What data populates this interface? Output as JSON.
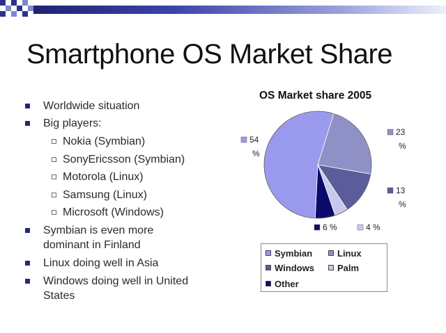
{
  "slide": {
    "title": "Smartphone OS Market Share",
    "bullets": [
      {
        "text": "Worldwide situation"
      },
      {
        "text": "Big players:"
      },
      {
        "text": "Nokia (Symbian)"
      },
      {
        "text": "SonyEricsson (Symbian)"
      },
      {
        "text": "Motorola (Linux)"
      },
      {
        "text": "Samsung (Linux)"
      },
      {
        "text": "Microsoft (Windows)"
      },
      {
        "text": "Symbian is even more"
      },
      {
        "text": "dominant in Finland"
      },
      {
        "text": "Linux doing well in Asia"
      },
      {
        "text": "Windows doing well in United"
      },
      {
        "text": "States"
      }
    ]
  },
  "chart_data": {
    "type": "pie",
    "title": "OS Market share 2005",
    "unit": "%",
    "categories": [
      "Symbian",
      "Linux",
      "Windows",
      "Palm",
      "Other"
    ],
    "values": [
      54,
      23,
      13,
      4,
      6
    ],
    "colors": [
      "#9999ee",
      "#8f91c6",
      "#5a5d9a",
      "#c8c8ea",
      "#0b0b6e"
    ],
    "data_labels": [
      "54\n%",
      "23\n%",
      "13\n%",
      "4 %",
      "6 %"
    ],
    "legend": {
      "position": "bottom",
      "entries": [
        "Symbian",
        "Linux",
        "Windows",
        "Palm",
        "Other"
      ]
    }
  }
}
